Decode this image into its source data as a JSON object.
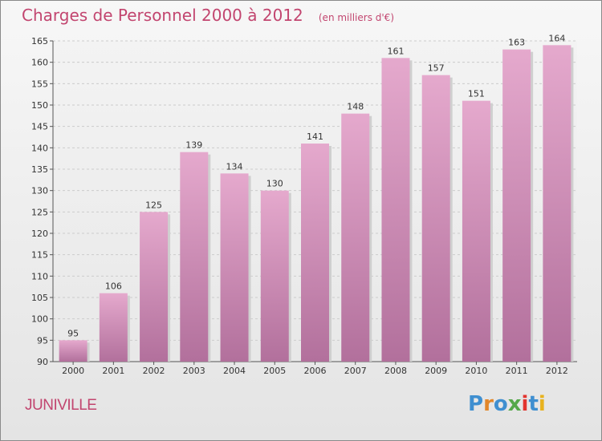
{
  "title": "Charges de Personnel 2000 à 2012",
  "subtitle": "(en milliers d'€)",
  "place": "JUNIVILLE",
  "logo": {
    "text": "Proxiti",
    "colors": [
      "#3f8fd0",
      "#e2872a",
      "#3f8fd0",
      "#55a84a",
      "#e2342f",
      "#3f8fd0",
      "#e8b21e"
    ]
  },
  "colors": {
    "bar_top": "#e5a9cd",
    "bar_bottom": "#b2709c",
    "text": "#c2456f",
    "grid": "#cccccc"
  },
  "chart_data": {
    "type": "bar",
    "categories": [
      "2000",
      "2001",
      "2002",
      "2003",
      "2004",
      "2005",
      "2006",
      "2007",
      "2008",
      "2009",
      "2010",
      "2011",
      "2012"
    ],
    "values": [
      95,
      106,
      125,
      139,
      134,
      130,
      141,
      148,
      161,
      157,
      151,
      163,
      164
    ],
    "ylim": [
      90,
      165
    ],
    "yticks": [
      90,
      95,
      100,
      105,
      110,
      115,
      120,
      125,
      130,
      135,
      140,
      145,
      150,
      155,
      160,
      165
    ],
    "grid": true,
    "data_labels": true
  }
}
